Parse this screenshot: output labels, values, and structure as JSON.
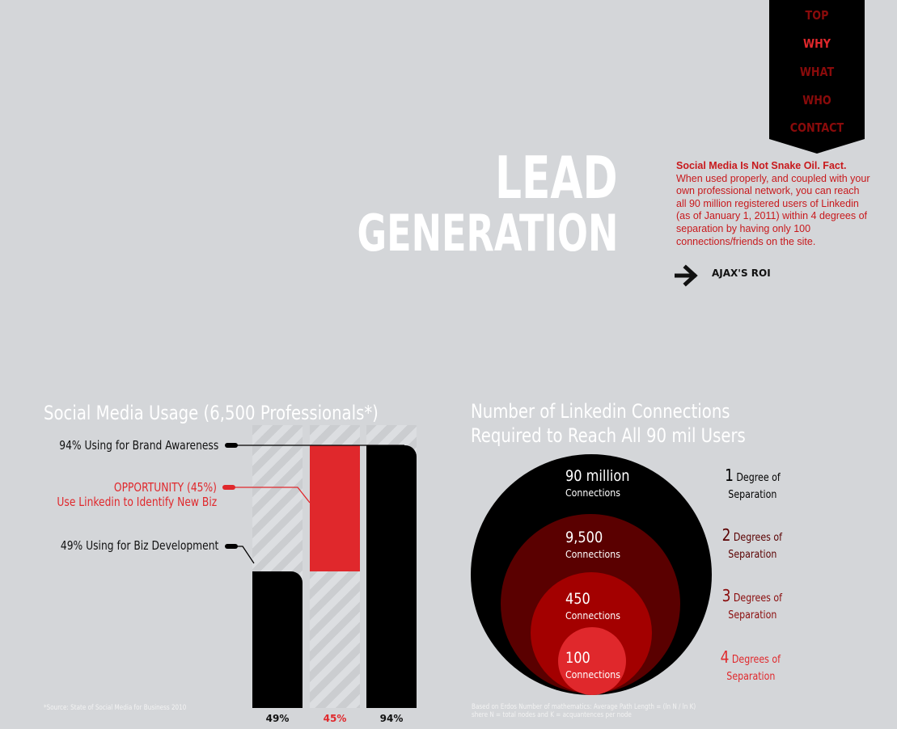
{
  "nav": {
    "items": [
      {
        "label": "TOP",
        "state": "dim"
      },
      {
        "label": "WHY",
        "state": "active"
      },
      {
        "label": "WHAT",
        "state": "dim"
      },
      {
        "label": "WHO",
        "state": "dim"
      },
      {
        "label": "CONTACT",
        "state": "dim"
      }
    ]
  },
  "hero": {
    "title_line1": "LEAD",
    "title_line2": "GENERATION"
  },
  "intro": {
    "heading": "Social Media Is Not Snake Oil. Fact.",
    "body": "When used properly, and coupled with your own professional network, you can reach all 90 million registered users of Linkedin (as of January 1, 2011) within 4 degrees of separation by having only 100 connections/friends on the site."
  },
  "roi_link": {
    "label": "AJAX'S ROI",
    "icon": "arrow-right-icon"
  },
  "colors": {
    "background": "#d4d6d9",
    "accent_red": "#e0282c",
    "dark_red": "#8a0b0b",
    "black": "#000000"
  },
  "usage_chart": {
    "title": "Social Media Usage (6,500 Professionals*)",
    "callouts": {
      "brand": "94% Using for Brand Awareness",
      "opportunity_line1": "OPPORTUNITY (45%)",
      "opportunity_line2": "Use Linkedin to Identify New Biz",
      "bizdev": "49% Using for Biz Development"
    },
    "footnote": "*Source: State of Social Media for Business 2010"
  },
  "connections_chart": {
    "title_line1": "Number of Linkedin Connections",
    "title_line2": "Required to Reach All 90 mil Users",
    "footnote_line1": "Based on Erdos Number of mathematics:  Average Path Length = (ln N / ln K)",
    "footnote_line2": "shere N = total nodes and K = acquantences per node"
  },
  "chart_data": [
    {
      "type": "bar",
      "title": "Social Media Usage (6,500 Professionals*)",
      "categories": [
        "49%",
        "45%",
        "94%"
      ],
      "values": [
        49,
        45,
        94
      ],
      "series": [
        {
          "name": "49% Using for Biz Development",
          "values": [
            49,
            null,
            null
          ],
          "color": "#000000"
        },
        {
          "name": "OPPORTUNITY (45%)",
          "values": [
            null,
            45,
            null
          ],
          "color": "#e0282c",
          "base": 49
        },
        {
          "name": "94% Using for Brand Awareness",
          "values": [
            null,
            null,
            94
          ],
          "color": "#000000"
        }
      ],
      "ylim": [
        0,
        100
      ],
      "grid": false
    },
    {
      "type": "pie",
      "title": "Number of Linkedin Connections Required to Reach All 90 mil Users",
      "rings": [
        {
          "value": "90 million",
          "unit": "Connections",
          "degree": "1",
          "degree_text": "Degree of",
          "sep_text": "Separation",
          "color": "#000000",
          "degree_color": "#000000"
        },
        {
          "value": "9,500",
          "unit": "Connections",
          "degree": "2",
          "degree_text": "Degrees of",
          "sep_text": "Separation",
          "color": "#5a0000",
          "degree_color": "#5a0000"
        },
        {
          "value": "450",
          "unit": "Connections",
          "degree": "3",
          "degree_text": "Degrees of",
          "sep_text": "Separation",
          "color": "#a30000",
          "degree_color": "#8a0b0b"
        },
        {
          "value": "100",
          "unit": "Connections",
          "degree": "4",
          "degree_text": "Degrees of",
          "sep_text": "Separation",
          "color": "#e0282c",
          "degree_color": "#e0282c"
        }
      ]
    }
  ]
}
